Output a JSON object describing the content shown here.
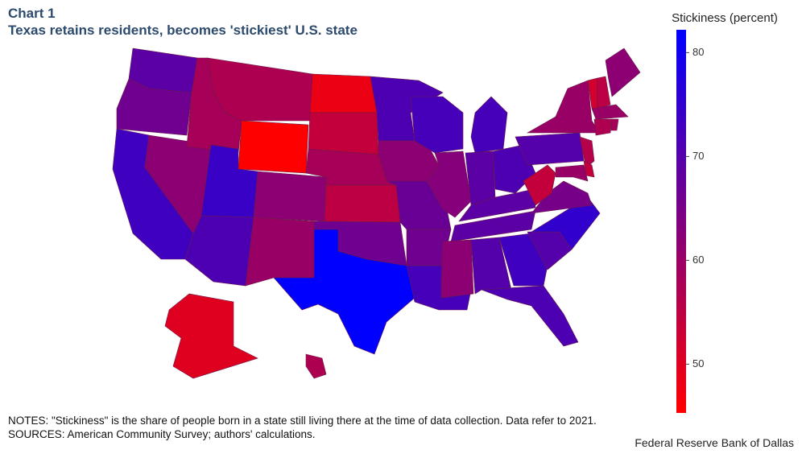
{
  "chart_data": {
    "type": "choropleth",
    "title": "Chart 1",
    "subtitle": "Texas retains residents, becomes 'stickiest' U.S. state",
    "colorbar_title": "Stickiness (percent)",
    "clim": [
      45.3,
      82.2
    ],
    "cticks": [
      50,
      60,
      70,
      80
    ],
    "colors": [
      "#ff0000",
      "#0000ff"
    ],
    "values": [
      69,
      66,
      73,
      62,
      58,
      57,
      45.3,
      74,
      62,
      71,
      60,
      48,
      54,
      58,
      55,
      66,
      82.2,
      71,
      62,
      67,
      66,
      72,
      72,
      63,
      72,
      69,
      71,
      69,
      69,
      62,
      70,
      73,
      71,
      70,
      75,
      65,
      54,
      70,
      60,
      52,
      55,
      62,
      60,
      57,
      58,
      56,
      54,
      60,
      50,
      57
    ],
    "notes": "NOTES: \"Stickiness\" is the share of people born in a state still living there at the time of data collection. Data refer to 2021.",
    "sources": "SOURCES: American Community Survey; authors' calculations.",
    "footer": "Federal Reserve Bank of Dallas"
  }
}
